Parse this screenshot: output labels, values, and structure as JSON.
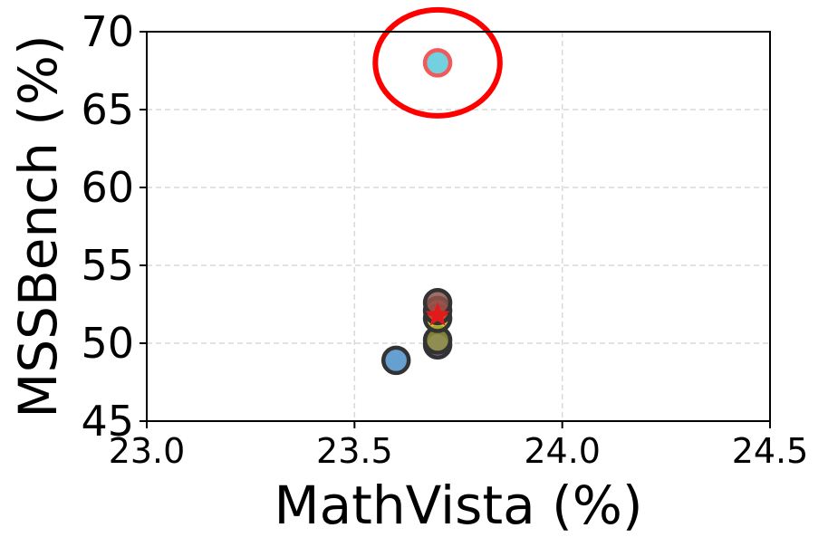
{
  "chart_data": {
    "type": "scatter",
    "xlabel": "MathVista (%)",
    "ylabel": "MSSBench (%)",
    "xlim": [
      23.0,
      24.5
    ],
    "ylim": [
      45,
      70
    ],
    "xticks": [
      "23.0",
      "23.5",
      "24.0",
      "24.5"
    ],
    "yticks": [
      "45",
      "50",
      "55",
      "60",
      "65",
      "70"
    ],
    "grid": true,
    "grid_style": "dashed",
    "points": [
      {
        "x": 23.6,
        "y": 48.9,
        "color": "#4a8fc9",
        "edge": "#333333"
      },
      {
        "x": 23.7,
        "y": 49.9,
        "color": "#9467bd",
        "edge": "#333333"
      },
      {
        "x": 23.7,
        "y": 50.2,
        "color": "#8c8f3a",
        "edge": "#333333"
      },
      {
        "x": 23.7,
        "y": 51.6,
        "color": "#bcbd22",
        "edge": "#333333"
      },
      {
        "x": 23.7,
        "y": 52.1,
        "color": "#d62728",
        "edge": "#333333"
      },
      {
        "x": 23.7,
        "y": 52.6,
        "color": "#8c564b",
        "edge": "#333333"
      },
      {
        "x": 23.7,
        "y": 68.0,
        "color": "#5bc8d8",
        "edge": "#f05a5a"
      }
    ],
    "marker_star": {
      "x": 23.7,
      "y": 51.8,
      "color": "#e31a1c"
    },
    "highlight_ellipse": {
      "x": 23.7,
      "y": 68.0,
      "rx": 0.15,
      "ry": 3.4,
      "color": "#ff0000"
    }
  }
}
